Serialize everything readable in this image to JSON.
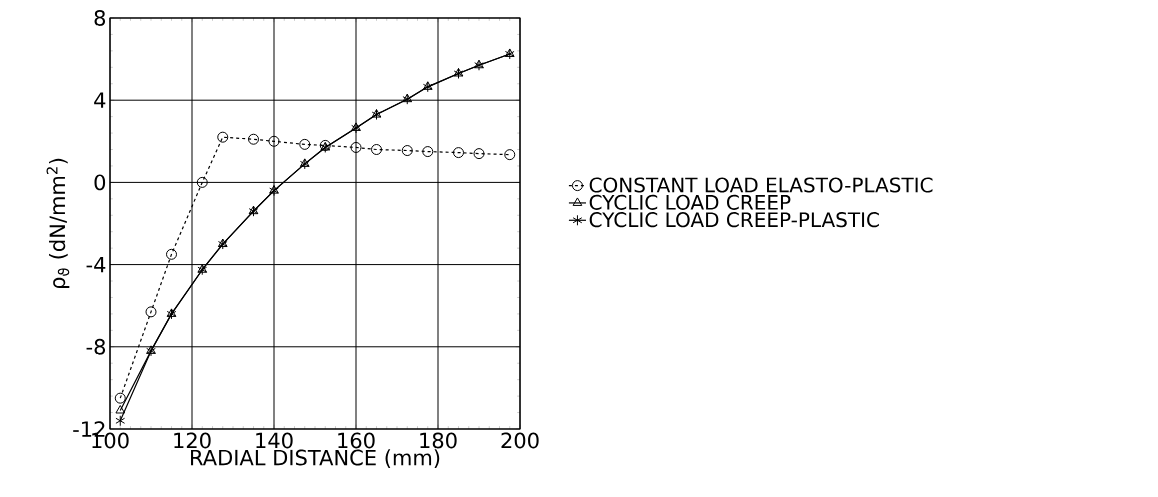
{
  "chart_data": {
    "type": "line",
    "xlabel": "RADIAL DISTANCE  (mm)",
    "ylabel": "ρ$_{ϑ}$    (dN/mm$^{2}$)",
    "x": [
      102.5,
      110,
      115,
      122.5,
      127.5,
      135,
      140,
      147.5,
      152.5,
      160,
      165,
      172.5,
      177.5,
      185,
      190,
      197.5
    ],
    "series": [
      {
        "name": "CONSTANT LOAD ELASTO-PLASTIC",
        "color": "#000000",
        "marker": "circle",
        "line_style": "dashed",
        "values": [
          -10.5,
          -6.3,
          -3.5,
          0,
          2.2,
          2.1,
          2.0,
          1.85,
          1.8,
          1.7,
          1.6,
          1.55,
          1.5,
          1.45,
          1.4,
          1.35
        ]
      },
      {
        "name": "CYCLIC LOAD CREEP",
        "color": "#000000",
        "marker": "triangle",
        "line_style": "solid",
        "values": [
          -11.1,
          -8.2,
          -6.4,
          -4.25,
          -3.0,
          -1.4,
          -0.4,
          0.9,
          1.7,
          2.65,
          3.3,
          4.05,
          4.65,
          5.3,
          5.7,
          6.25
        ]
      },
      {
        "name": "CYCLIC LOAD CREEP-PLASTIC",
        "color": "#000000",
        "marker": "cross",
        "line_style": "solid",
        "values": [
          -11.6,
          -8.2,
          -6.4,
          -4.25,
          -3.0,
          -1.4,
          -0.4,
          0.9,
          1.7,
          2.65,
          3.3,
          4.05,
          4.65,
          5.3,
          5.7,
          6.25
        ]
      }
    ],
    "xlim": [
      100,
      200
    ],
    "ylim": [
      -12,
      8
    ],
    "xticks": [
      100,
      120,
      140,
      160,
      180,
      200
    ],
    "yticks": [
      -12,
      -8,
      -4,
      0,
      4,
      8
    ],
    "grid": true,
    "legend": "right"
  }
}
